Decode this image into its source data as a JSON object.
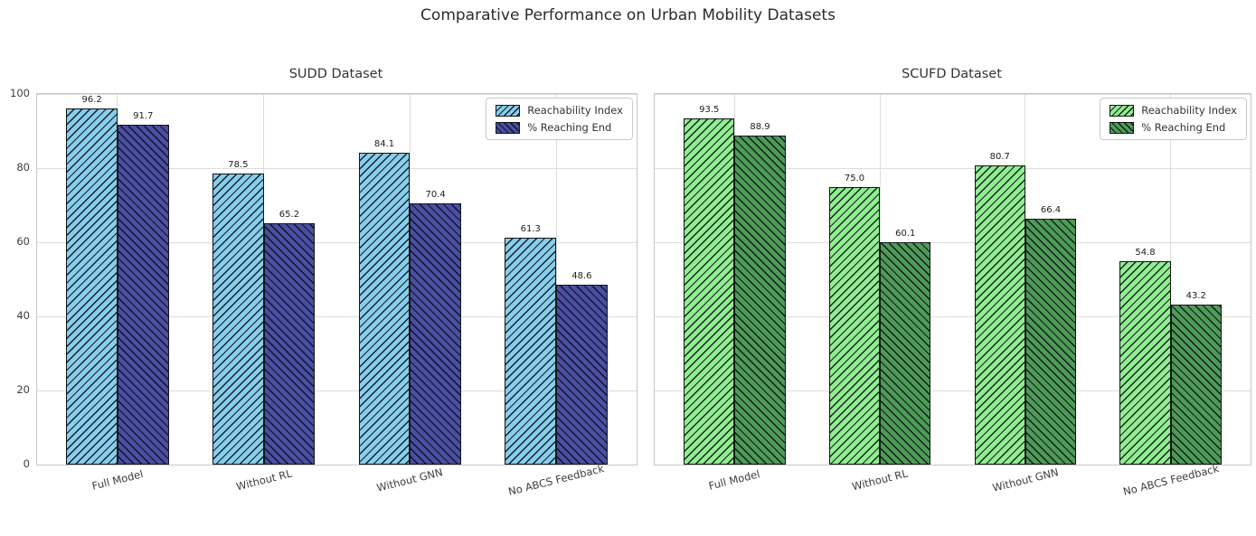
{
  "figure": {
    "suptitle": "Comparative Performance on Urban Mobility Datasets",
    "background": "#ffffff"
  },
  "colors": {
    "bar_edge": "#141414",
    "hatch": "rgba(10,10,22,0.9)",
    "grid": "#dcdcdc",
    "spine": "#c8c8c8",
    "title_text": "#2b2b2b",
    "tick_text": "#3d3d3d"
  },
  "chart_data": [
    {
      "type": "bar",
      "title": "SUDD Dataset",
      "categories": [
        "Full Model",
        "Without RL",
        "Without GNN",
        "No ABCS Feedback"
      ],
      "series": [
        {
          "name": "Reachability Index",
          "values": [
            96.2,
            78.5,
            84.1,
            61.3
          ],
          "color": "#87ceeb",
          "hatch": "/"
        },
        {
          "name": "% Reaching End",
          "values": [
            91.7,
            65.2,
            70.4,
            48.6
          ],
          "color": "#4a4fa3",
          "hatch": "\\"
        }
      ],
      "ylim": [
        0,
        100
      ],
      "yticks": [
        0,
        20,
        40,
        60,
        80,
        100
      ],
      "grid": true,
      "legend_position": "upper right",
      "xlabel": "",
      "ylabel": ""
    },
    {
      "type": "bar",
      "title": "SCUFD Dataset",
      "categories": [
        "Full Model",
        "Without RL",
        "Without GNN",
        "No ABCS Feedback"
      ],
      "series": [
        {
          "name": "Reachability Index",
          "values": [
            93.5,
            75.0,
            80.7,
            54.8
          ],
          "color": "#90ee90",
          "hatch": "/"
        },
        {
          "name": "% Reaching End",
          "values": [
            88.9,
            60.1,
            66.4,
            43.2
          ],
          "color": "#4e9b57",
          "hatch": "\\"
        }
      ],
      "ylim": [
        0,
        100
      ],
      "yticks": [
        0,
        20,
        40,
        60,
        80,
        100
      ],
      "grid": true,
      "legend_position": "upper right",
      "xlabel": "",
      "ylabel": ""
    }
  ]
}
